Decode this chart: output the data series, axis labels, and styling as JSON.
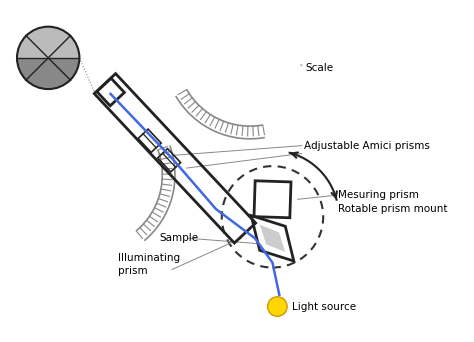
{
  "bg_color": "#ffffff",
  "blue_line_color": "#4169e1",
  "light_source_color": "#ffd700",
  "label_color": "#000000",
  "line_color": "#222222",
  "gray_color": "#888888",
  "labels": {
    "scale": "Scale",
    "amici": "Adjustable Amici prisms",
    "measuring": "Mesuring prism",
    "rotable": "Rotable prism mount",
    "sample": "Sample",
    "illuminating": "Illuminating\nprism",
    "light": "Light source"
  },
  "figsize": [
    4.74,
    3.42
  ],
  "dpi": 100
}
